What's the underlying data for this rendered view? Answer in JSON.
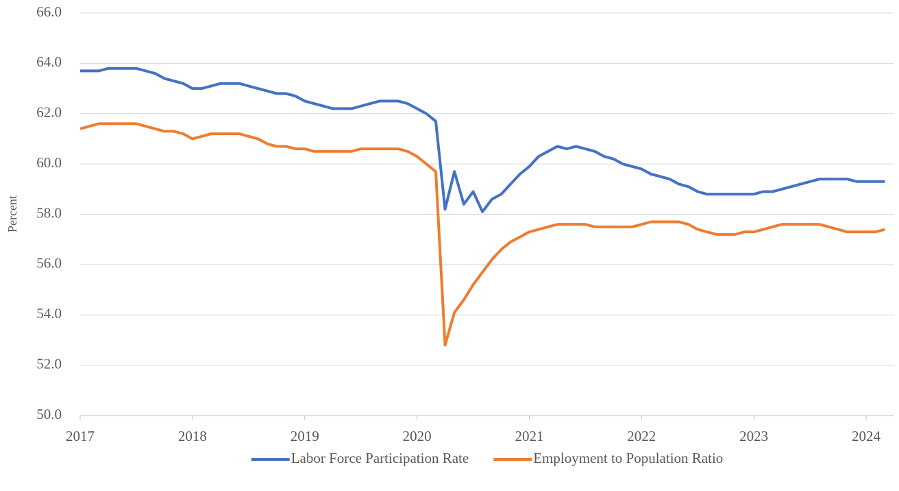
{
  "chart_data": {
    "type": "line",
    "y_label": "Percent",
    "x": [
      2017,
      2017.083,
      2017.167,
      2017.25,
      2017.333,
      2017.417,
      2017.5,
      2017.583,
      2017.667,
      2017.75,
      2017.833,
      2017.917,
      2018,
      2018.083,
      2018.167,
      2018.25,
      2018.333,
      2018.417,
      2018.5,
      2018.583,
      2018.667,
      2018.75,
      2018.833,
      2018.917,
      2019,
      2019.083,
      2019.167,
      2019.25,
      2019.333,
      2019.417,
      2019.5,
      2019.583,
      2019.667,
      2019.75,
      2019.833,
      2019.917,
      2020,
      2020.083,
      2020.167,
      2020.25,
      2020.333,
      2020.417,
      2020.5,
      2020.583,
      2020.667,
      2020.75,
      2020.833,
      2020.917,
      2021,
      2021.083,
      2021.167,
      2021.25,
      2021.333,
      2021.417,
      2021.5,
      2021.583,
      2021.667,
      2021.75,
      2021.833,
      2021.917,
      2022,
      2022.083,
      2022.167,
      2022.25,
      2022.333,
      2022.417,
      2022.5,
      2022.583,
      2022.667,
      2022.75,
      2022.833,
      2022.917,
      2023,
      2023.083,
      2023.167,
      2023.25,
      2023.333,
      2023.417,
      2023.5,
      2023.583,
      2023.667,
      2023.75,
      2023.833,
      2023.917,
      2024,
      2024.083,
      2024.167
    ],
    "series": [
      {
        "name": "Labor Force Participation Rate",
        "color": "#4472c4",
        "values": [
          63.7,
          63.7,
          63.7,
          63.8,
          63.8,
          63.8,
          63.8,
          63.7,
          63.6,
          63.4,
          63.3,
          63.2,
          63.0,
          63.0,
          63.1,
          63.2,
          63.2,
          63.2,
          63.1,
          63.0,
          62.9,
          62.8,
          62.8,
          62.7,
          62.5,
          62.4,
          62.3,
          62.2,
          62.2,
          62.2,
          62.3,
          62.4,
          62.5,
          62.5,
          62.5,
          62.4,
          62.2,
          62.0,
          61.7,
          58.2,
          59.7,
          58.4,
          58.9,
          58.1,
          58.6,
          58.8,
          59.2,
          59.6,
          59.9,
          60.3,
          60.5,
          60.7,
          60.6,
          60.7,
          60.6,
          60.5,
          60.3,
          60.2,
          60.0,
          59.9,
          59.8,
          59.6,
          59.5,
          59.4,
          59.2,
          59.1,
          58.9,
          58.8,
          58.8,
          58.8,
          58.8,
          58.8,
          58.8,
          58.9,
          58.9,
          59.0,
          59.1,
          59.2,
          59.3,
          59.4,
          59.4,
          59.4,
          59.4,
          59.3,
          59.3,
          59.3,
          59.3
        ]
      },
      {
        "name": "Employment to Population Ratio",
        "color": "#ed7d31",
        "values": [
          61.4,
          61.5,
          61.6,
          61.6,
          61.6,
          61.6,
          61.6,
          61.5,
          61.4,
          61.3,
          61.3,
          61.2,
          61.0,
          61.1,
          61.2,
          61.2,
          61.2,
          61.2,
          61.1,
          61.0,
          60.8,
          60.7,
          60.7,
          60.6,
          60.6,
          60.5,
          60.5,
          60.5,
          60.5,
          60.5,
          60.6,
          60.6,
          60.6,
          60.6,
          60.6,
          60.5,
          60.3,
          60.0,
          59.7,
          52.8,
          54.1,
          54.6,
          55.2,
          55.7,
          56.2,
          56.6,
          56.9,
          57.1,
          57.3,
          57.4,
          57.5,
          57.6,
          57.6,
          57.6,
          57.6,
          57.5,
          57.5,
          57.5,
          57.5,
          57.5,
          57.6,
          57.7,
          57.7,
          57.7,
          57.7,
          57.6,
          57.4,
          57.3,
          57.2,
          57.2,
          57.2,
          57.3,
          57.3,
          57.4,
          57.5,
          57.6,
          57.6,
          57.6,
          57.6,
          57.6,
          57.5,
          57.4,
          57.3,
          57.3,
          57.3,
          57.3,
          57.4
        ]
      }
    ],
    "xlim": [
      2017,
      2024.25
    ],
    "xticks": [
      2017,
      2018,
      2019,
      2020,
      2021,
      2022,
      2023,
      2024
    ],
    "ylim": [
      50,
      66
    ],
    "yticks": [
      {
        "value": 50,
        "label": "50.0"
      },
      {
        "value": 52,
        "label": "52.0"
      },
      {
        "value": 54,
        "label": "54.0"
      },
      {
        "value": 56,
        "label": "56.0"
      },
      {
        "value": 58,
        "label": "58.0"
      },
      {
        "value": 60,
        "label": "60.0"
      },
      {
        "value": 62,
        "label": "62.0"
      },
      {
        "value": 64,
        "label": "64.0"
      },
      {
        "value": 66,
        "label": "66.0"
      }
    ],
    "grid": true,
    "legend": "bottom"
  }
}
